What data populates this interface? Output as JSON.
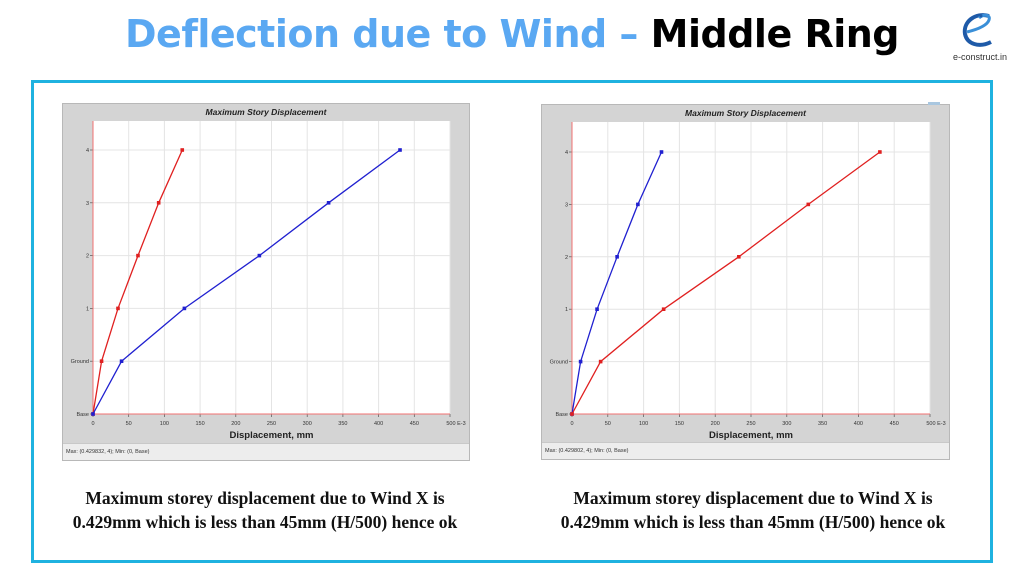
{
  "header": {
    "title_part1": "Deflection due to Wind – ",
    "title_part2": "Middle Ring",
    "title_color_1": "#5aa8f2",
    "title_color_2": "#000000",
    "logo_icon": "e-construct-logo-icon",
    "logo_text": "e-construct.in"
  },
  "frame_color": "#1fb2e0",
  "panels": [
    {
      "chart_title": "Maximum Story Displacement",
      "status": "Max: (0.429832, 4);   Min: (0, Base)",
      "caption_line1": "Maximum storey displacement due to Wind X is",
      "caption_line2": "0.429mm which is less than 45mm (H/500) hence ok"
    },
    {
      "chart_title": "Maximum Story Displacement",
      "status": "Max: (0.429802, 4);   Min: (0, Base)",
      "caption_line1": "Maximum storey displacement due to Wind X is",
      "caption_line2": "0.429mm which is less than 45mm (H/500) hence ok"
    }
  ],
  "chart_data": [
    {
      "type": "line",
      "title": "Maximum Story Displacement",
      "xlabel": "Displacement, mm",
      "xunit_suffix": "E-3",
      "ylabel": "",
      "xlim": [
        0,
        500
      ],
      "xticks": [
        0,
        50,
        100,
        150,
        200,
        250,
        300,
        350,
        400,
        450,
        500
      ],
      "categories": [
        "Base",
        "Ground",
        "1",
        "2",
        "3",
        "4"
      ],
      "grid": true,
      "series": [
        {
          "name": "Red series",
          "color": "#e02020",
          "values": [
            0,
            12,
            35,
            63,
            92,
            125
          ]
        },
        {
          "name": "Blue series",
          "color": "#2020d0",
          "values": [
            0,
            40,
            128,
            233,
            330,
            430
          ]
        }
      ],
      "status": "Max: (0.429832, 4);   Min: (0, Base)"
    },
    {
      "type": "line",
      "title": "Maximum Story Displacement",
      "xlabel": "Displacement, mm",
      "xunit_suffix": "E-3",
      "ylabel": "",
      "xlim": [
        0,
        500
      ],
      "xticks": [
        0,
        50,
        100,
        150,
        200,
        250,
        300,
        350,
        400,
        450,
        500
      ],
      "categories": [
        "Base",
        "Ground",
        "1",
        "2",
        "3",
        "4"
      ],
      "grid": true,
      "series": [
        {
          "name": "Blue series",
          "color": "#2020d0",
          "values": [
            0,
            12,
            35,
            63,
            92,
            125
          ]
        },
        {
          "name": "Red series",
          "color": "#e02020",
          "values": [
            0,
            40,
            128,
            233,
            330,
            430
          ]
        }
      ],
      "status": "Max: (0.429802, 4);   Min: (0, Base)"
    }
  ]
}
